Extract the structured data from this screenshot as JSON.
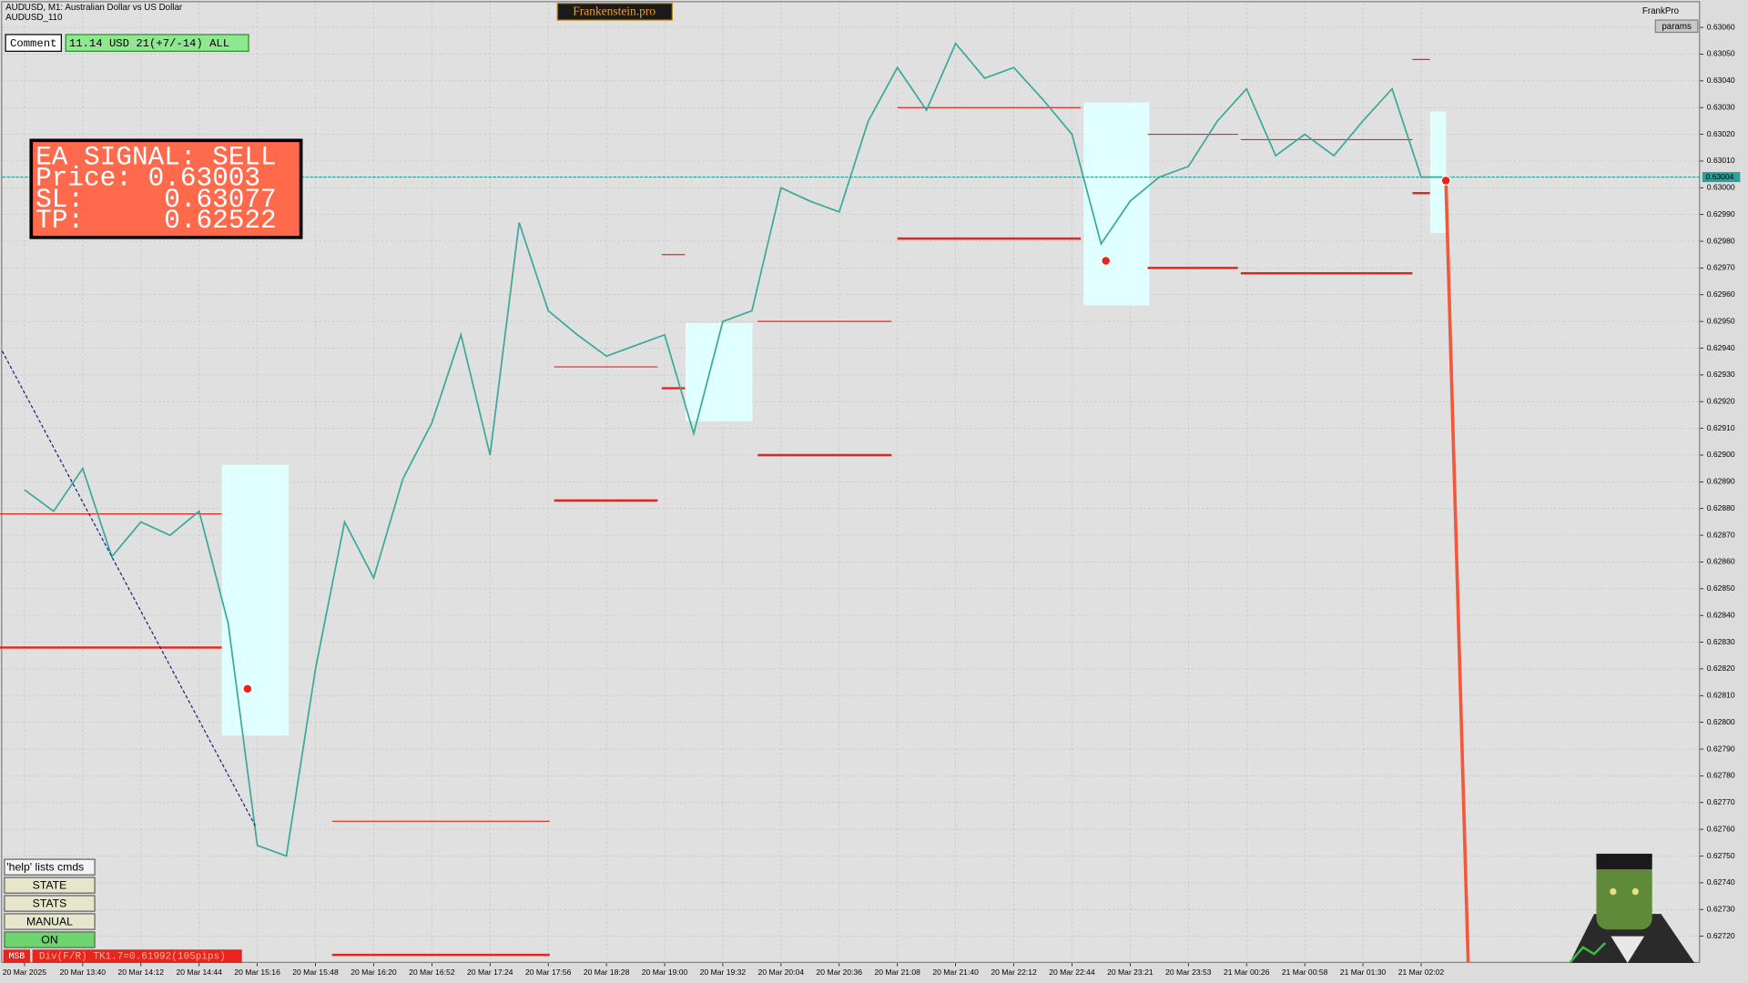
{
  "chart_data": {
    "type": "line",
    "symbol": "AUDUSD, M1:  Australian Dollar vs US Dollar",
    "account": "AUDUSD_110",
    "categories": [
      "20 Mar 2025",
      null,
      "20 Mar 13:40",
      null,
      "20 Mar 14:12",
      null,
      "20 Mar 14:44",
      null,
      "20 Mar 15:16",
      null,
      "20 Mar 15:48",
      null,
      "20 Mar 16:20",
      null,
      "20 Mar 16:52",
      null,
      "20 Mar 17:24",
      null,
      "20 Mar 17:56",
      null,
      "20 Mar 18:28",
      null,
      "20 Mar 19:00",
      null,
      "20 Mar 19:32",
      null,
      "20 Mar 20:04",
      null,
      "20 Mar 20:36",
      null,
      "20 Mar 21:08",
      null,
      "20 Mar 21:40",
      null,
      "20 Mar 22:12",
      null,
      "20 Mar 22:44",
      null,
      "20 Mar 23:21",
      null,
      "20 Mar 23:53",
      null,
      "21 Mar 00:26",
      null,
      "21 Mar 00:58",
      null,
      "21 Mar 01:30",
      null,
      "21 Mar 02:02",
      null
    ],
    "values": [
      0.62887,
      0.62879,
      0.62895,
      0.62862,
      0.62875,
      0.6287,
      0.62879,
      0.62837,
      0.62754,
      0.6275,
      0.6282,
      0.62875,
      0.62854,
      0.62891,
      0.62912,
      0.62945,
      0.629,
      0.62987,
      0.62954,
      0.62945,
      0.62937,
      0.62941,
      0.62945,
      0.62908,
      0.6295,
      0.62954,
      0.63,
      0.62995,
      0.62991,
      0.63025,
      0.63045,
      0.63029,
      0.63054,
      0.63041,
      0.63045,
      0.63033,
      0.6302,
      0.62979,
      0.62995,
      0.63004,
      0.63008,
      0.63025,
      0.63037,
      0.63012,
      0.6302,
      0.63012,
      0.63025,
      0.63037,
      0.63004,
      0.63004
    ],
    "color": "#3aa89a",
    "current_price": 0.63004,
    "current_color": "#2ba09a",
    "level_color": "#e8241c",
    "levels": [
      {
        "price": 0.62878,
        "start": -0.88,
        "end": 6.78
      },
      {
        "price": 0.62828,
        "start": -0.88,
        "end": 6.78
      },
      {
        "price": 0.62763,
        "start": 10.57,
        "end": 18.05
      },
      {
        "price": 0.62713,
        "start": 10.57,
        "end": 18.05
      },
      {
        "price": 0.62933,
        "start": 18.2,
        "end": 21.76
      },
      {
        "price": 0.62883,
        "start": 18.2,
        "end": 21.76
      },
      {
        "price": 0.62975,
        "start": 21.9,
        "end": 22.7
      },
      {
        "price": 0.62925,
        "start": 21.9,
        "end": 22.7
      },
      {
        "price": 0.6295,
        "start": 25.2,
        "end": 29.8
      },
      {
        "price": 0.629,
        "start": 25.2,
        "end": 29.8
      },
      {
        "price": 0.6303,
        "start": 30,
        "end": 36.3
      },
      {
        "price": 0.62981,
        "start": 30,
        "end": 36.3
      },
      {
        "price": 0.6302,
        "start": 38.6,
        "end": 41.7
      },
      {
        "price": 0.6297,
        "start": 38.6,
        "end": 41.7
      },
      {
        "price": 0.63018,
        "start": 41.8,
        "end": 47.7
      },
      {
        "price": 0.62968,
        "start": 41.8,
        "end": 47.7
      },
      {
        "price": 0.63048,
        "start": 47.7,
        "end": 48.3
      },
      {
        "price": 0.62998,
        "start": 47.7,
        "end": 48.3
      }
    ],
    "ylim": [
      0.6271,
      0.63069
    ],
    "yticks": [
      {
        "value": 0.6272,
        "label": "0.62720"
      },
      {
        "value": 0.6273,
        "label": "0.62730"
      },
      {
        "value": 0.6274,
        "label": "0.62740"
      },
      {
        "value": 0.6275,
        "label": "0.62750"
      },
      {
        "value": 0.6276,
        "label": "0.62760"
      },
      {
        "value": 0.6277,
        "label": "0.62770"
      },
      {
        "value": 0.6278,
        "label": "0.62780"
      },
      {
        "value": 0.6279,
        "label": "0.62790"
      },
      {
        "value": 0.628,
        "label": "0.62800"
      },
      {
        "value": 0.6281,
        "label": "0.62810"
      },
      {
        "value": 0.6282,
        "label": "0.62820"
      },
      {
        "value": 0.6283,
        "label": "0.62830"
      },
      {
        "value": 0.6284,
        "label": "0.62840"
      },
      {
        "value": 0.6285,
        "label": "0.62850"
      },
      {
        "value": 0.6286,
        "label": "0.62860"
      },
      {
        "value": 0.6287,
        "label": "0.62870"
      },
      {
        "value": 0.6288,
        "label": "0.62880"
      },
      {
        "value": 0.6289,
        "label": "0.62890"
      },
      {
        "value": 0.629,
        "label": "0.62900"
      },
      {
        "value": 0.6291,
        "label": "0.62910"
      },
      {
        "value": 0.6292,
        "label": "0.62920"
      },
      {
        "value": 0.6293,
        "label": "0.62930"
      },
      {
        "value": 0.6294,
        "label": "0.62940"
      },
      {
        "value": 0.6295,
        "label": "0.62950"
      },
      {
        "value": 0.6296,
        "label": "0.62960"
      },
      {
        "value": 0.6297,
        "label": "0.62970"
      },
      {
        "value": 0.6298,
        "label": "0.62980"
      },
      {
        "value": 0.6299,
        "label": "0.62990"
      },
      {
        "value": 0.63,
        "label": "0.63000"
      },
      {
        "value": 0.6301,
        "label": "0.63010"
      },
      {
        "value": 0.6302,
        "label": "0.63020"
      },
      {
        "value": 0.6303,
        "label": "0.63030"
      },
      {
        "value": 0.6304,
        "label": "0.63040"
      },
      {
        "value": 0.6305,
        "label": "0.63050"
      },
      {
        "value": 0.6306,
        "label": "0.63060"
      }
    ],
    "grid": true
  },
  "ui": {
    "brand": "Frankenstein.pro",
    "profile": "FrankPro",
    "params": "params",
    "comment": "Comment",
    "summary": "11.14 USD 21(+7/-14) ALL",
    "signal": [
      "EA SIGNAL: SELL",
      "Price: 0.63003",
      "SL:     0.63077",
      "TP:     0.62522"
    ],
    "buttons": [
      "'help' lists cmds",
      "STATE",
      "STATS",
      "MANUAL",
      "ON"
    ],
    "status_tag": "MSB",
    "status_text": "Div(F/R) TK1.7=0.61992(105pips)"
  }
}
